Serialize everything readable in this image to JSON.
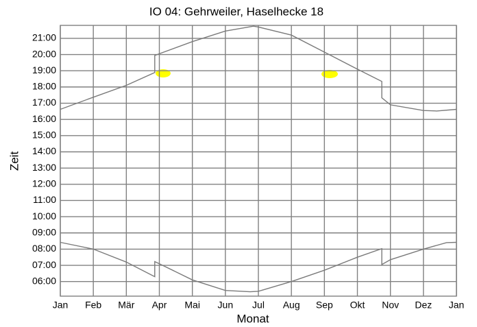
{
  "chart_data": {
    "type": "line",
    "title": "IO 04: Gehrweiler, Haselhecke 18",
    "x_label": "Monat",
    "y_label": "Zeit",
    "xlim": [
      0,
      12
    ],
    "xticks": [
      {
        "value": 0,
        "label": "Jan"
      },
      {
        "value": 1,
        "label": "Feb"
      },
      {
        "value": 2,
        "label": "Mär"
      },
      {
        "value": 3,
        "label": "Apr"
      },
      {
        "value": 4,
        "label": "Mai"
      },
      {
        "value": 5,
        "label": "Jun"
      },
      {
        "value": 6,
        "label": "Jul"
      },
      {
        "value": 7,
        "label": "Aug"
      },
      {
        "value": 8,
        "label": "Sep"
      },
      {
        "value": 9,
        "label": "Okt"
      },
      {
        "value": 10,
        "label": "Nov"
      },
      {
        "value": 11,
        "label": "Dez"
      },
      {
        "value": 12,
        "label": "Jan"
      }
    ],
    "ylim": [
      5.1,
      21.8
    ],
    "yticks": [
      {
        "value": 6,
        "label": "06:00"
      },
      {
        "value": 7,
        "label": "07:00"
      },
      {
        "value": 8,
        "label": "08:00"
      },
      {
        "value": 9,
        "label": "09:00"
      },
      {
        "value": 10,
        "label": "10:00"
      },
      {
        "value": 11,
        "label": "11:00"
      },
      {
        "value": 12,
        "label": "12:00"
      },
      {
        "value": 13,
        "label": "13:00"
      },
      {
        "value": 14,
        "label": "14:00"
      },
      {
        "value": 15,
        "label": "15:00"
      },
      {
        "value": 16,
        "label": "16:00"
      },
      {
        "value": 17,
        "label": "17:00"
      },
      {
        "value": 18,
        "label": "18:00"
      },
      {
        "value": 19,
        "label": "19:00"
      },
      {
        "value": 20,
        "label": "20:00"
      },
      {
        "value": 21,
        "label": "21:00"
      }
    ],
    "grid": true,
    "series": [
      {
        "color": "#7a7a7a",
        "x": [
          0,
          1,
          2,
          2.86,
          2.86,
          3,
          4,
          5,
          5.85,
          6,
          7,
          8,
          9,
          9.74,
          9.74,
          10,
          11,
          11.4,
          12
        ],
        "values": [
          16.62,
          17.37,
          18.1,
          18.89,
          19.94,
          20.05,
          20.8,
          21.45,
          21.75,
          21.7,
          21.2,
          20.15,
          19.1,
          18.34,
          17.33,
          16.9,
          16.55,
          16.52,
          16.62
        ]
      },
      {
        "color": "#7a7a7a",
        "x": [
          0,
          1,
          2,
          2.86,
          2.86,
          3,
          4,
          5,
          5.75,
          6,
          7,
          8,
          9,
          9.74,
          9.74,
          10,
          11,
          11.7,
          12
        ],
        "values": [
          8.42,
          8.0,
          7.2,
          6.3,
          7.23,
          7.1,
          6.1,
          5.45,
          5.37,
          5.4,
          6.0,
          6.7,
          7.5,
          8.03,
          7.05,
          7.35,
          8.0,
          8.4,
          8.42
        ]
      }
    ]
  }
}
